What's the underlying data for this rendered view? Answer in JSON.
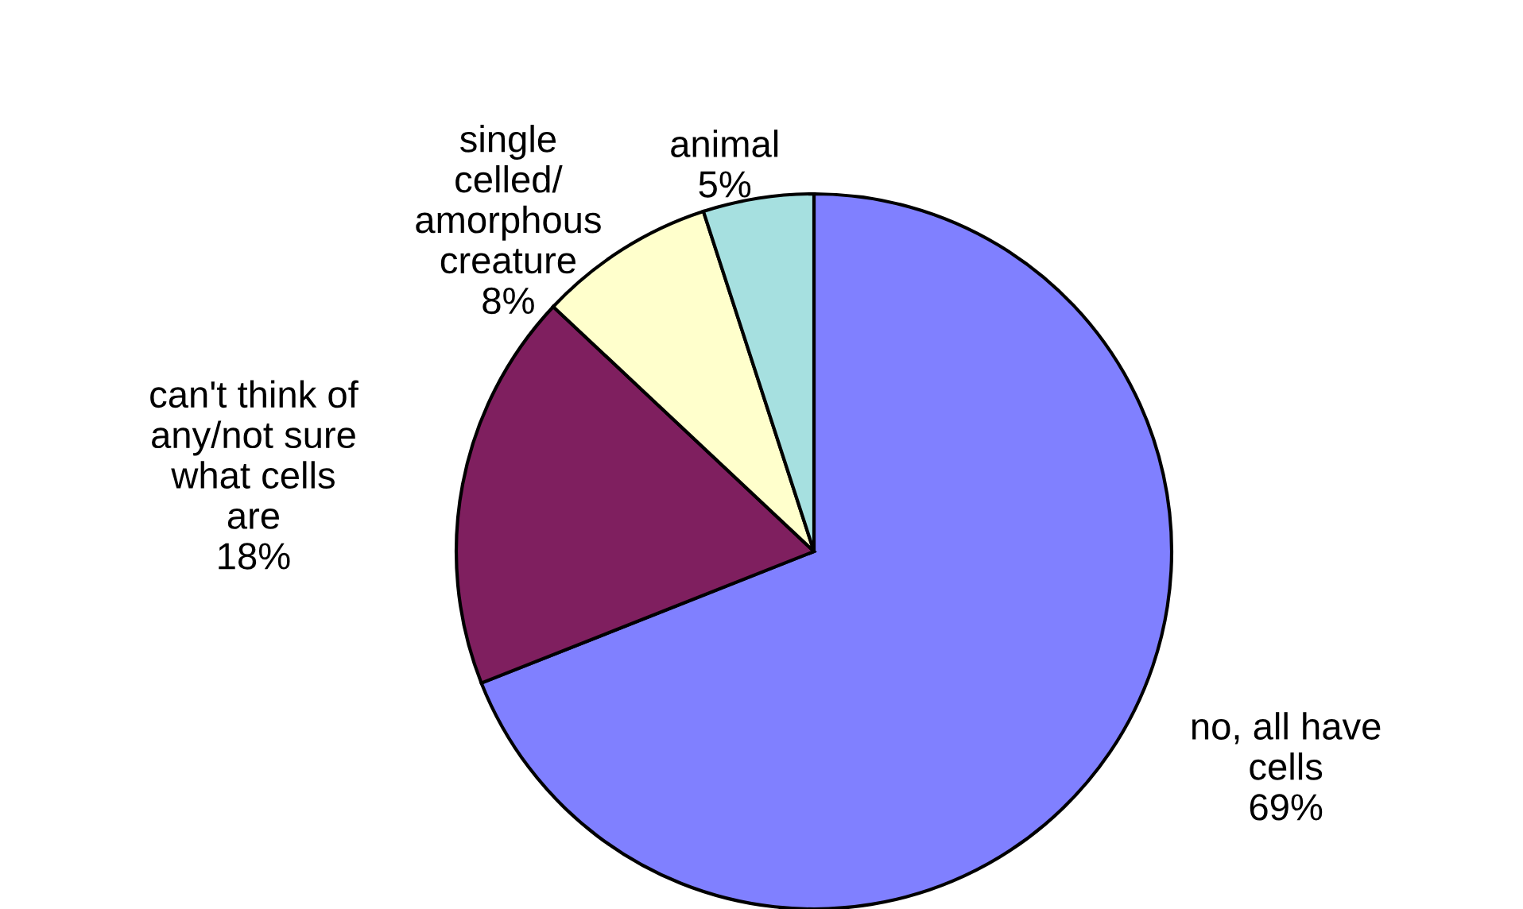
{
  "chart_data": {
    "type": "pie",
    "categories": [
      "no, all have\ncells",
      "can't think of\nany/not sure\nwhat cells\nare",
      "single\ncelled/\namorphous\ncreature",
      "animal"
    ],
    "values": [
      69,
      18,
      8,
      5
    ],
    "colors": [
      "#8080ff",
      "#7f1f5f",
      "#ffffcc",
      "#a6e0e0"
    ],
    "value_labels": [
      "69%",
      "18%",
      "8%",
      "5%"
    ]
  }
}
